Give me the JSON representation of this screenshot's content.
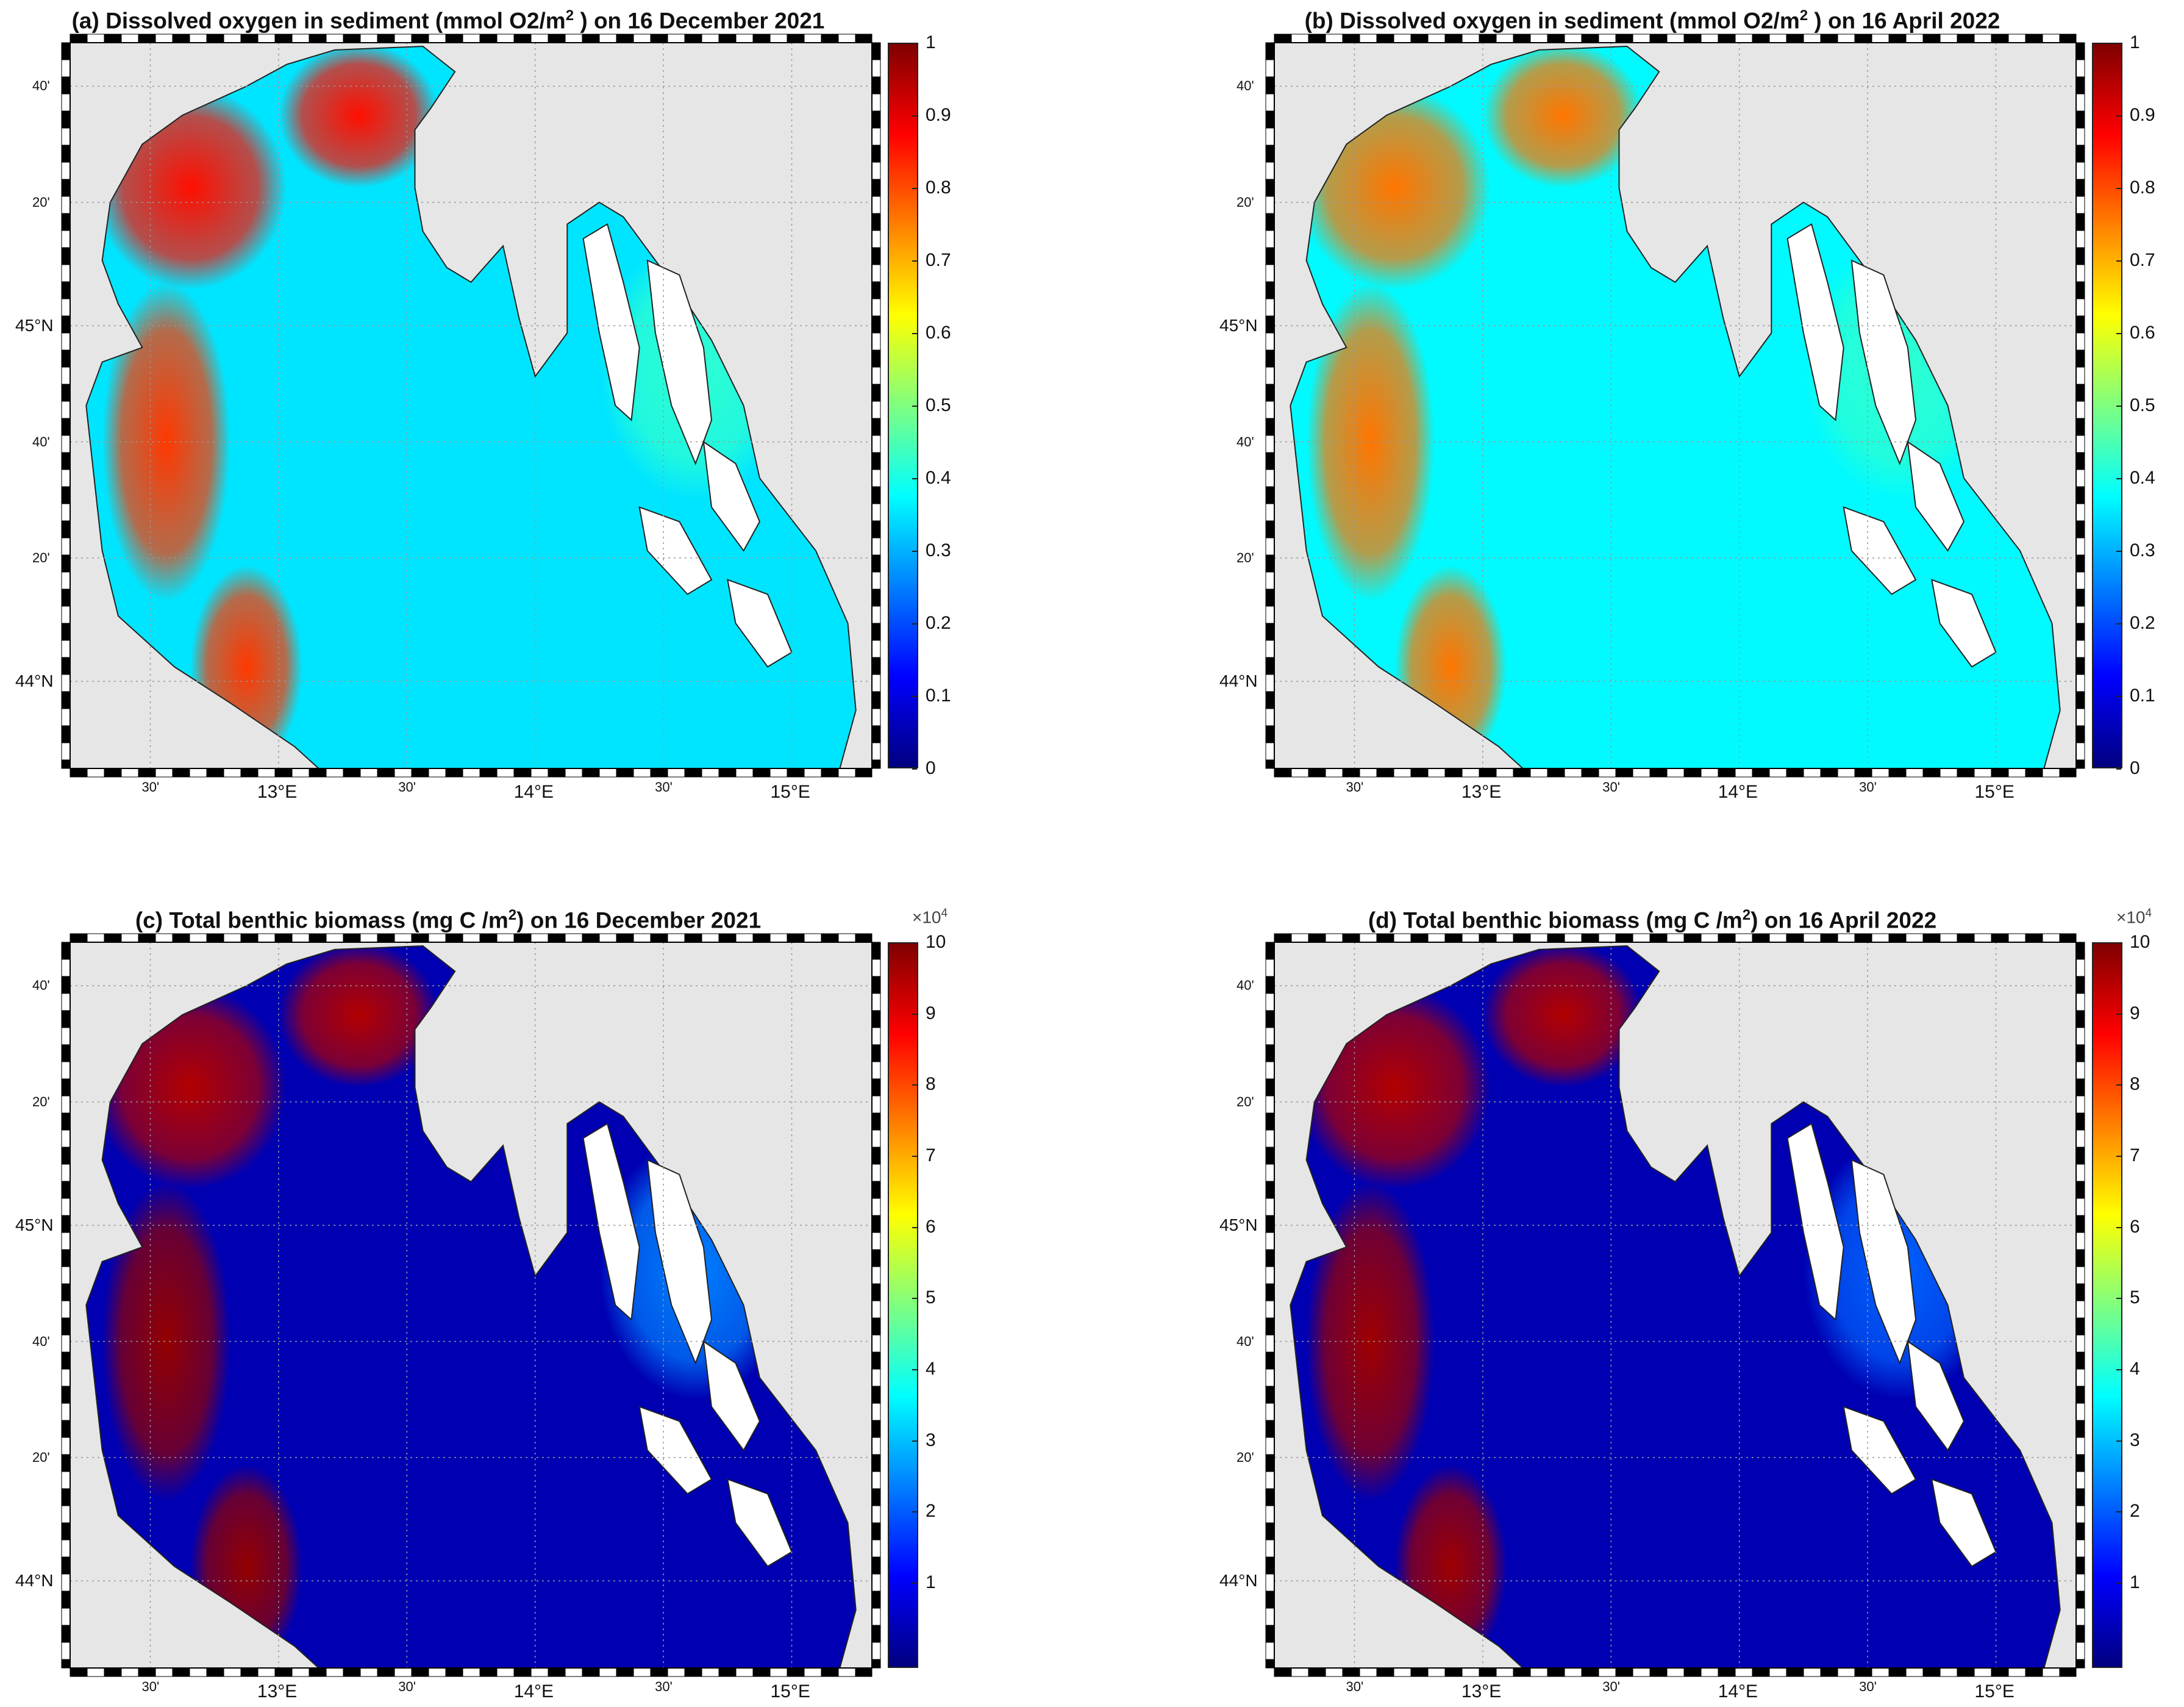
{
  "colormaps": {
    "jet_stops": [
      "#00007f",
      "#0000ff",
      "#007fff",
      "#00ffff",
      "#7fff7f",
      "#ffff00",
      "#ff7f00",
      "#ff0000",
      "#7f0000"
    ],
    "land_color": "#e6e6e6",
    "water_mask_color": "#ffffff",
    "coastline_color": "#222222"
  },
  "axes": {
    "lon_major": [
      "13°E",
      "14°E",
      "15°E"
    ],
    "lon_minor": [
      "30'",
      "30'",
      "30'"
    ],
    "lat_major": [
      "45°N",
      "44°N"
    ],
    "lat_minor": [
      "40'",
      "20'",
      "40'",
      "20'"
    ]
  },
  "panels": [
    {
      "id": "a",
      "title_pre": "(a) Dissolved oxygen in sediment (mmol O2/m",
      "title_sup": "2",
      "title_post": " ) on 16 December 2021",
      "variable": "oxygen",
      "date": "16 December 2021",
      "colorbar": {
        "ticks": [
          "1",
          "0.9",
          "0.8",
          "0.7",
          "0.6",
          "0.5",
          "0.4",
          "0.3",
          "0.2",
          "0.1",
          "0"
        ],
        "exponent": ""
      },
      "field": {
        "west_coast": 0.82,
        "north_gulf": 0.86,
        "interior": 0.35,
        "shelf": 0.42
      }
    },
    {
      "id": "b",
      "title_pre": "(b) Dissolved oxygen in sediment (mmol O2/m",
      "title_sup": "2",
      "title_post": " ) on 16 April 2022",
      "variable": "oxygen",
      "date": "16 April 2022",
      "colorbar": {
        "ticks": [
          "1",
          "0.9",
          "0.8",
          "0.7",
          "0.6",
          "0.5",
          "0.4",
          "0.3",
          "0.2",
          "0.1",
          "0"
        ],
        "exponent": ""
      },
      "field": {
        "west_coast": 0.76,
        "north_gulf": 0.76,
        "interior": 0.37,
        "shelf": 0.42
      }
    },
    {
      "id": "c",
      "title_pre": "(c) Total benthic biomass (mg C /m",
      "title_sup": "2",
      "title_post": ") on 16 December 2021",
      "variable": "biomass",
      "date": "16 December 2021",
      "colorbar": {
        "ticks": [
          "10",
          "9",
          "8",
          "7",
          "6",
          "5",
          "4",
          "3",
          "2",
          "1"
        ],
        "exponent": "×10",
        "exponent_sup": "4"
      },
      "field": {
        "west_coast": 0.98,
        "north_gulf": 0.95,
        "interior": 0.05,
        "shelf": 0.25
      }
    },
    {
      "id": "d",
      "title_pre": "(d) Total benthic biomass (mg C /m",
      "title_sup": "2",
      "title_post": ") on 16 April 2022",
      "variable": "biomass",
      "date": "16 April 2022",
      "colorbar": {
        "ticks": [
          "10",
          "9",
          "8",
          "7",
          "6",
          "5",
          "4",
          "3",
          "2",
          "1"
        ],
        "exponent": "×10",
        "exponent_sup": "4"
      },
      "field": {
        "west_coast": 0.97,
        "north_gulf": 0.95,
        "interior": 0.05,
        "shelf": 0.22
      }
    }
  ]
}
